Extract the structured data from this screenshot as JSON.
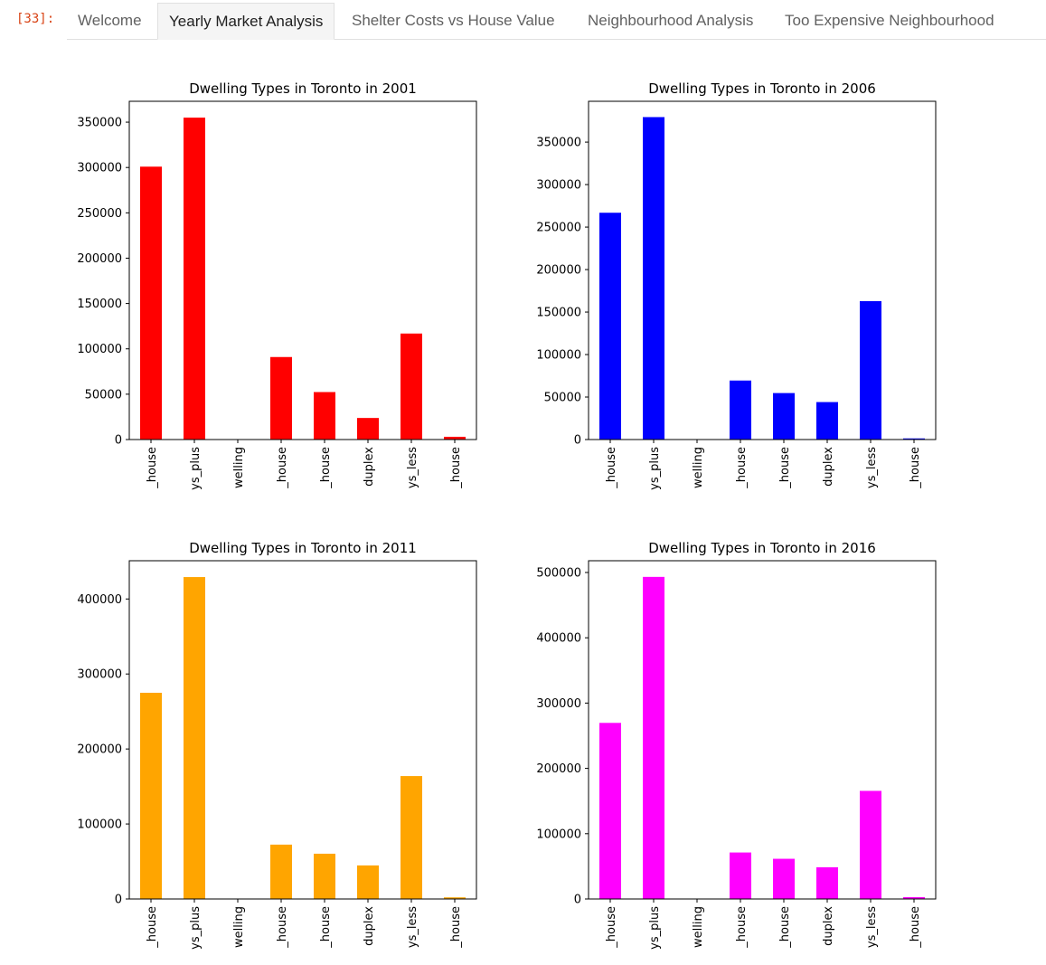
{
  "cell": {
    "prompt": "[33]:"
  },
  "tabs": [
    {
      "label": "Welcome",
      "active": false
    },
    {
      "label": "Yearly Market Analysis",
      "active": true
    },
    {
      "label": "Shelter Costs vs House Value",
      "active": false
    },
    {
      "label": "Neighbourhood Analysis",
      "active": false
    },
    {
      "label": "Too Expensive Neighbourhood",
      "active": false
    }
  ],
  "chart_data": [
    {
      "type": "bar",
      "title": "Dwelling Types in Toronto in 2001",
      "color": "#ff0000",
      "categories": [
        "_house",
        "ys_plus",
        "welling",
        "_house",
        "_house",
        "duplex",
        "ys_less",
        "_house"
      ],
      "values": [
        300930,
        355015,
        75,
        90995,
        52355,
        23785,
        116900,
        3040
      ],
      "ylim": [
        0,
        373000
      ],
      "yticks": [
        0,
        50000,
        100000,
        150000,
        200000,
        250000,
        300000,
        350000
      ]
    },
    {
      "type": "bar",
      "title": "Dwelling Types in Toronto in 2006",
      "color": "#0000ff",
      "categories": [
        "_house",
        "ys_plus",
        "welling",
        "_house",
        "_house",
        "duplex",
        "ys_less",
        "_house"
      ],
      "values": [
        266860,
        379400,
        165,
        69430,
        54690,
        44095,
        162850,
        1335
      ],
      "ylim": [
        0,
        398000
      ],
      "yticks": [
        0,
        50000,
        100000,
        150000,
        200000,
        250000,
        300000,
        350000
      ]
    },
    {
      "type": "bar",
      "title": "Dwelling Types in Toronto in 2011",
      "color": "#ffa500",
      "categories": [
        "_house",
        "ys_plus",
        "welling",
        "_house",
        "_house",
        "duplex",
        "ys_less",
        "_house"
      ],
      "values": [
        274940,
        429220,
        100,
        72480,
        60355,
        44750,
        163895,
        2165
      ],
      "ylim": [
        0,
        451000
      ],
      "yticks": [
        0,
        100000,
        200000,
        300000,
        400000
      ]
    },
    {
      "type": "bar",
      "title": "Dwelling Types in Toronto in 2016",
      "color": "#ff00ff",
      "categories": [
        "_house",
        "ys_plus",
        "welling",
        "_house",
        "_house",
        "duplex",
        "ys_less",
        "_house"
      ],
      "values": [
        269680,
        493270,
        95,
        71200,
        61565,
        48585,
        165555,
        2845
      ],
      "ylim": [
        0,
        518000
      ],
      "yticks": [
        0,
        100000,
        200000,
        300000,
        400000,
        500000
      ]
    }
  ]
}
